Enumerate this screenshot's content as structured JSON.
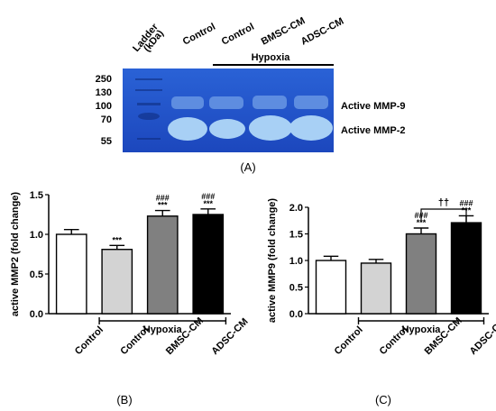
{
  "panel_a": {
    "lane_labels": [
      "Ladder\n(kDa)",
      "Control",
      "Control",
      "BMSC-CM",
      "ADSC-CM"
    ],
    "hypoxia_label": "Hypoxia",
    "ladder_kda": [
      "250",
      "130",
      "100",
      "70",
      "55"
    ],
    "band_labels": [
      "Active MMP-9",
      "Active MMP-2"
    ],
    "caption": "(A)",
    "gel_color": "#1f4fc6",
    "band_color": "#9fc8f2"
  },
  "chart_data": [
    {
      "type": "bar",
      "ylabel": "active MMP2 (fold change)",
      "categories": [
        "Control",
        "Control",
        "BMSC-CM",
        "ADSC-CM"
      ],
      "values": [
        1.0,
        0.81,
        1.23,
        1.25
      ],
      "errors": [
        0.06,
        0.05,
        0.07,
        0.07
      ],
      "fills": [
        "#ffffff",
        "#d3d3d3",
        "#808080",
        "#000000"
      ],
      "significance": [
        "",
        "***",
        "###\n***",
        "###\n***"
      ],
      "ylim": [
        0,
        1.5
      ],
      "yticks": [
        "0.0",
        "0.5",
        "1.0",
        "1.5"
      ],
      "group_label": "Hypoxia",
      "caption": "(B)"
    },
    {
      "type": "bar",
      "ylabel": "active MMP9 (fold change)",
      "categories": [
        "Control",
        "Control",
        "BMSC-CM",
        "ADSC-CM"
      ],
      "values": [
        1.0,
        0.95,
        1.5,
        1.71
      ],
      "errors": [
        0.08,
        0.07,
        0.11,
        0.13
      ],
      "fills": [
        "#ffffff",
        "#d3d3d3",
        "#808080",
        "#000000"
      ],
      "significance": [
        "",
        "",
        "###\n***",
        "###\n***"
      ],
      "bracket_label": "††",
      "ylim": [
        0,
        2.0
      ],
      "yticks": [
        "0.0",
        "0.5",
        "1.0",
        "1.5",
        "2.0"
      ],
      "group_label": "Hypoxia",
      "caption": "(C)"
    }
  ]
}
